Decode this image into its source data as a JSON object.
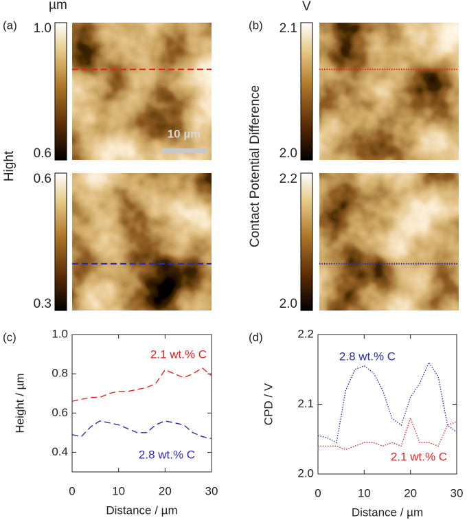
{
  "chart_data": [
    {
      "type": "image",
      "label": "(a)",
      "cbar_unit": "µm",
      "cbar_label": "Hight",
      "clim": [
        0.6,
        1.0
      ],
      "cticks": [
        0.6,
        {
          "value": 1.0,
          "label": "1.0"
        }
      ],
      "profile_color": "#e8231e",
      "profile_style": "dashed",
      "scalebar": "10 µm"
    },
    {
      "type": "image",
      "clim": [
        0.3,
        0.6
      ],
      "cticks": [
        0.3,
        0.6
      ],
      "profile_color": "#2a2ab8",
      "profile_style": "dashed"
    },
    {
      "type": "image",
      "label": "(b)",
      "cbar_unit": "V",
      "cbar_label": "Contact Potential Difference",
      "clim": [
        2.0,
        2.1
      ],
      "cticks": [
        {
          "value": 2.0,
          "label": "2.0"
        },
        2.1
      ],
      "profile_color": "#e8231e",
      "profile_style": "dotted"
    },
    {
      "type": "image",
      "clim": [
        2.0,
        2.2
      ],
      "cticks": [
        {
          "value": 2.0,
          "label": "2.0"
        },
        2.2
      ],
      "profile_color": "#2a2ab8",
      "profile_style": "dotted"
    },
    {
      "type": "line",
      "label": "(c)",
      "xlabel": "Distance / µm",
      "ylabel": "Height / µm",
      "line_style": "dashed",
      "xlim": [
        0,
        30
      ],
      "xticks": [
        0,
        10,
        20,
        30
      ],
      "ylim": [
        0.3,
        1.0
      ],
      "yticks": [
        0.4,
        0.6,
        0.8,
        {
          "value": 1.0,
          "label": "1.0"
        }
      ],
      "x": [
        0,
        2,
        4,
        6,
        8,
        10,
        12,
        14,
        16,
        18,
        20,
        22,
        24,
        26,
        28,
        30
      ],
      "series": [
        {
          "name": "2.1 wt.% C",
          "color": "#e8231e",
          "values": [
            0.66,
            0.67,
            0.68,
            0.68,
            0.7,
            0.71,
            0.71,
            0.72,
            0.73,
            0.75,
            0.82,
            0.8,
            0.78,
            0.8,
            0.83,
            0.79
          ]
        },
        {
          "name": "2.8 wt.% C",
          "color": "#2a2ab8",
          "values": [
            0.49,
            0.48,
            0.53,
            0.56,
            0.55,
            0.54,
            0.52,
            0.5,
            0.5,
            0.54,
            0.56,
            0.55,
            0.54,
            0.5,
            0.48,
            0.47
          ]
        }
      ]
    },
    {
      "type": "line",
      "label": "(d)",
      "xlabel": "Distance / µm",
      "ylabel": "CPD / V",
      "line_style": "dotted",
      "xlim": [
        0,
        30
      ],
      "xticks": [
        0,
        10,
        20,
        30
      ],
      "ylim": [
        2.0,
        2.2
      ],
      "yticks": [
        {
          "value": 2.0,
          "label": "2.0"
        },
        2.1,
        2.2
      ],
      "x": [
        0,
        2,
        4,
        6,
        8,
        10,
        12,
        14,
        16,
        18,
        20,
        22,
        24,
        26,
        28,
        30
      ],
      "series": [
        {
          "name": "2.8 wt.% C",
          "color": "#2a2ab8",
          "values": [
            2.055,
            2.052,
            2.045,
            2.12,
            2.15,
            2.155,
            2.145,
            2.12,
            2.08,
            2.07,
            2.11,
            2.13,
            2.16,
            2.14,
            2.07,
            2.06
          ]
        },
        {
          "name": "2.1 wt.% C",
          "color": "#e8231e",
          "values": [
            2.04,
            2.04,
            2.04,
            2.035,
            2.04,
            2.045,
            2.045,
            2.04,
            2.045,
            2.04,
            2.08,
            2.045,
            2.045,
            2.04,
            2.07,
            2.075
          ]
        }
      ]
    }
  ]
}
